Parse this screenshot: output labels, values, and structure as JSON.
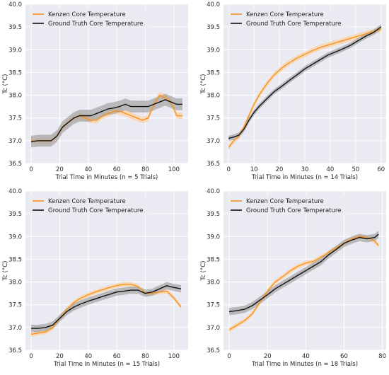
{
  "colors": {
    "kenzen": "#f7931e",
    "kenzen_band": "#fbd0a3",
    "truth": "#111111",
    "truth_band": "#9e9e9e",
    "plot_bg": "#eaeaf2",
    "grid": "#ffffff"
  },
  "chart_data": [
    {
      "type": "line",
      "xlabel": "Trial Time in Minutes (n = 5 Trials)",
      "ylabel": "Tc (°C)",
      "xlim": [
        -4,
        110
      ],
      "ylim": [
        36.5,
        40.0
      ],
      "xticks": [
        0,
        20,
        40,
        60,
        80,
        100
      ],
      "yticks": [
        36.5,
        37.0,
        37.5,
        38.0,
        38.5,
        39.0,
        39.5,
        40.0
      ],
      "grid": true,
      "legend": "top-left",
      "series": [
        {
          "name": "Kenzen Core Temperature",
          "band": 0.07,
          "x": [
            0,
            5,
            10,
            14,
            18,
            22,
            26,
            30,
            34,
            38,
            42,
            46,
            50,
            54,
            58,
            62,
            66,
            70,
            74,
            78,
            82,
            86,
            90,
            94,
            98,
            102,
            106
          ],
          "y": [
            37.0,
            37.0,
            37.0,
            37.0,
            37.1,
            37.3,
            37.4,
            37.5,
            37.55,
            37.5,
            37.45,
            37.45,
            37.55,
            37.6,
            37.65,
            37.65,
            37.6,
            37.55,
            37.5,
            37.45,
            37.5,
            37.8,
            38.0,
            37.95,
            37.85,
            37.55,
            37.55
          ]
        },
        {
          "name": "Ground Truth Core Temperature",
          "band": 0.13,
          "x": [
            0,
            5,
            10,
            14,
            18,
            22,
            26,
            30,
            34,
            38,
            42,
            46,
            50,
            54,
            58,
            62,
            66,
            70,
            74,
            78,
            82,
            86,
            90,
            94,
            98,
            102,
            106
          ],
          "y": [
            36.98,
            37.0,
            37.0,
            37.0,
            37.1,
            37.3,
            37.4,
            37.5,
            37.55,
            37.55,
            37.55,
            37.6,
            37.65,
            37.7,
            37.72,
            37.75,
            37.8,
            37.75,
            37.75,
            37.75,
            37.75,
            37.8,
            37.85,
            37.9,
            37.85,
            37.8,
            37.8
          ]
        }
      ]
    },
    {
      "type": "line",
      "xlabel": "Trial Time in Minutes (n = 14 Trials)",
      "ylabel": "Tc (°C)",
      "xlim": [
        -2,
        62
      ],
      "ylim": [
        36.5,
        40.0
      ],
      "xticks": [
        0,
        10,
        20,
        30,
        40,
        50,
        60
      ],
      "yticks": [
        36.5,
        37.0,
        37.5,
        38.0,
        38.5,
        39.0,
        39.5,
        40.0
      ],
      "grid": true,
      "legend": "top-left",
      "series": [
        {
          "name": "Kenzen Core Temperature",
          "band": 0.06,
          "x": [
            0,
            2,
            4,
            6,
            8,
            10,
            12,
            15,
            18,
            21,
            24,
            27,
            30,
            33,
            36,
            39,
            42,
            45,
            48,
            51,
            54,
            57,
            60
          ],
          "y": [
            36.85,
            37.0,
            37.1,
            37.3,
            37.55,
            37.8,
            38.0,
            38.25,
            38.45,
            38.6,
            38.72,
            38.82,
            38.9,
            38.98,
            39.05,
            39.1,
            39.15,
            39.2,
            39.25,
            39.3,
            39.35,
            39.4,
            39.45
          ]
        },
        {
          "name": "Ground Truth Core Temperature",
          "band": 0.06,
          "x": [
            0,
            2,
            4,
            6,
            8,
            10,
            12,
            15,
            18,
            21,
            24,
            27,
            30,
            33,
            36,
            39,
            42,
            45,
            48,
            51,
            54,
            57,
            60
          ],
          "y": [
            37.05,
            37.08,
            37.12,
            37.25,
            37.45,
            37.62,
            37.75,
            37.92,
            38.08,
            38.2,
            38.33,
            38.45,
            38.58,
            38.68,
            38.78,
            38.88,
            38.95,
            39.02,
            39.1,
            39.2,
            39.3,
            39.38,
            39.5
          ]
        }
      ]
    },
    {
      "type": "line",
      "xlabel": "Trial Time in Minutes (n = 15 Trials)",
      "ylabel": "Tc (°C)",
      "xlim": [
        -4,
        110
      ],
      "ylim": [
        36.5,
        40.0
      ],
      "xticks": [
        0,
        20,
        40,
        60,
        80,
        100
      ],
      "yticks": [
        36.5,
        37.0,
        37.5,
        38.0,
        38.5,
        39.0,
        39.5,
        40.0
      ],
      "grid": true,
      "legend": "top-left",
      "series": [
        {
          "name": "Kenzen Core Temperature",
          "band": 0.05,
          "x": [
            0,
            5,
            10,
            15,
            20,
            25,
            30,
            35,
            40,
            45,
            50,
            55,
            60,
            65,
            70,
            75,
            80,
            85,
            90,
            95,
            100,
            105
          ],
          "y": [
            36.85,
            36.88,
            36.9,
            37.0,
            37.2,
            37.4,
            37.55,
            37.65,
            37.72,
            37.78,
            37.83,
            37.88,
            37.92,
            37.95,
            37.95,
            37.9,
            37.75,
            37.75,
            37.78,
            37.8,
            37.65,
            37.45
          ]
        },
        {
          "name": "Ground Truth Core Temperature",
          "band": 0.08,
          "x": [
            0,
            5,
            10,
            15,
            20,
            25,
            30,
            35,
            40,
            45,
            50,
            55,
            60,
            65,
            70,
            75,
            80,
            85,
            90,
            95,
            100,
            105
          ],
          "y": [
            36.98,
            36.98,
            37.0,
            37.05,
            37.2,
            37.35,
            37.45,
            37.52,
            37.58,
            37.63,
            37.68,
            37.73,
            37.78,
            37.8,
            37.82,
            37.82,
            37.75,
            37.78,
            37.85,
            37.92,
            37.88,
            37.85
          ]
        }
      ]
    },
    {
      "type": "line",
      "xlabel": "Trial Time in Minutes (n = 18 Trials)",
      "ylabel": "Tc (°C)",
      "xlim": [
        -3,
        82
      ],
      "ylim": [
        36.5,
        40.0
      ],
      "xticks": [
        0,
        20,
        40,
        60,
        80
      ],
      "yticks": [
        36.5,
        37.0,
        37.5,
        38.0,
        38.5,
        39.0,
        39.5,
        40.0
      ],
      "grid": true,
      "legend": "top-left",
      "series": [
        {
          "name": "Kenzen Core Temperature",
          "band": 0.05,
          "x": [
            0,
            4,
            8,
            12,
            16,
            20,
            24,
            28,
            32,
            36,
            40,
            44,
            48,
            52,
            56,
            60,
            64,
            68,
            72,
            76,
            78
          ],
          "y": [
            36.95,
            37.05,
            37.15,
            37.3,
            37.55,
            37.8,
            38.0,
            38.12,
            38.25,
            38.35,
            38.42,
            38.45,
            38.55,
            38.65,
            38.75,
            38.85,
            38.95,
            39.0,
            38.98,
            38.9,
            38.8
          ]
        },
        {
          "name": "Ground Truth Core Temperature",
          "band": 0.08,
          "x": [
            0,
            4,
            8,
            12,
            16,
            20,
            24,
            28,
            32,
            36,
            40,
            44,
            48,
            52,
            56,
            60,
            64,
            68,
            72,
            76,
            78
          ],
          "y": [
            37.35,
            37.37,
            37.4,
            37.48,
            37.6,
            37.72,
            37.85,
            37.95,
            38.05,
            38.15,
            38.25,
            38.35,
            38.45,
            38.6,
            38.72,
            38.85,
            38.92,
            38.98,
            38.95,
            38.98,
            39.05
          ]
        }
      ]
    }
  ]
}
